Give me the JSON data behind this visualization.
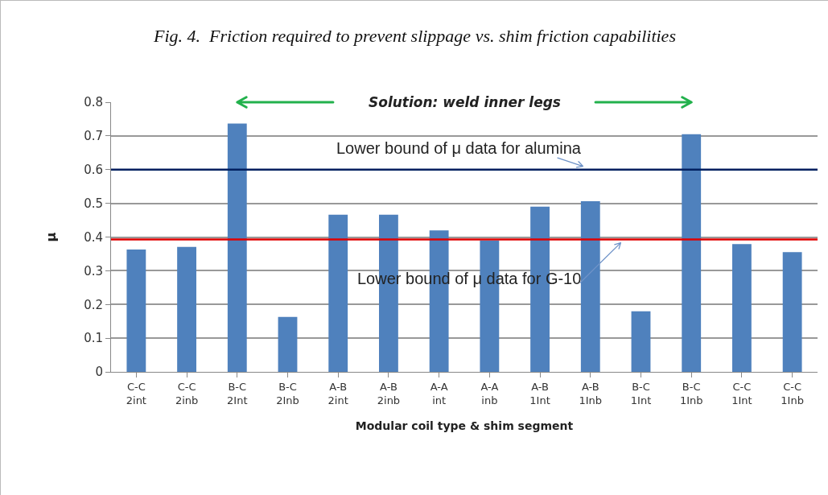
{
  "chart_data": {
    "type": "bar",
    "title": "Fig. 4.  Friction required to prevent slippage vs. shim friction capabilities",
    "xlabel": "Modular coil type & shim segment",
    "ylabel": "μ",
    "categories": [
      "C-C 2int",
      "C-C 2inb",
      "B-C 2Int",
      "B-C 2Inb",
      "A-B 2int",
      "A-B 2inb",
      "A-A int",
      "A-A inb",
      "A-B 1Int",
      "A-B 1Inb",
      "B-C 1Int",
      "B-C 1Inb",
      "C-C 1Int",
      "C-C 1Inb"
    ],
    "values": [
      0.363,
      0.371,
      0.737,
      0.163,
      0.466,
      0.466,
      0.42,
      0.39,
      0.49,
      0.506,
      0.18,
      0.705,
      0.379,
      0.355
    ],
    "color": "#4f81bd",
    "ylim": [
      0,
      0.8
    ],
    "yticks": [
      0,
      0.1,
      0.2,
      0.3,
      0.4,
      0.5,
      0.6,
      0.7,
      0.8
    ],
    "grid": "y",
    "ref_lines": [
      {
        "axis": "y",
        "value": 0.6,
        "label": "Lower bound of μ data for alumina",
        "color": "#002060"
      },
      {
        "axis": "y",
        "value": 0.393,
        "label": "Lower bound of μ data for G-10",
        "color": "#e00000"
      }
    ],
    "annotations": [
      "Solution: weld inner legs"
    ]
  }
}
